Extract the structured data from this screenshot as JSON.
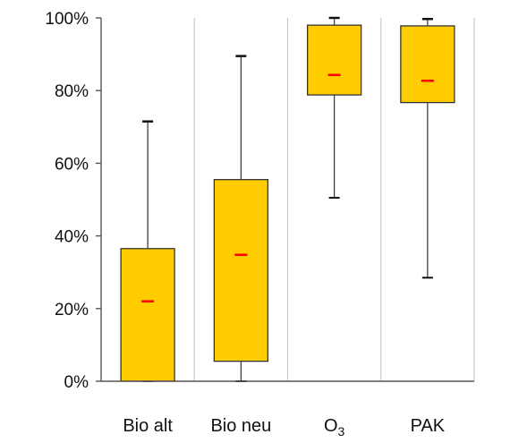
{
  "chart_data": {
    "type": "box",
    "title": "",
    "xlabel": "",
    "ylabel": "",
    "ylim": [
      0,
      100
    ],
    "yticks": [
      0,
      20,
      40,
      60,
      80,
      100
    ],
    "ytick_labels": [
      "0%",
      "20%",
      "40%",
      "60%",
      "80%",
      "100%"
    ],
    "grid": "vertical separators between categories",
    "colors": {
      "box_fill": "#ffcc00",
      "box_edge": "#333333",
      "mean_marker": "#ff0000",
      "whisker": "#333333",
      "separator": "#c8c8c8"
    },
    "categories": [
      {
        "label": "Bio alt",
        "label_sub": "",
        "whisker_low": 0,
        "q1": 0,
        "mean": 22,
        "q3": 36.5,
        "whisker_high": 71.5
      },
      {
        "label": "Bio neu",
        "label_sub": "",
        "whisker_low": 0,
        "q1": 5.5,
        "mean": 34.8,
        "q3": 55.5,
        "whisker_high": 89.5
      },
      {
        "label": "O",
        "label_sub": "3",
        "whisker_low": 50.5,
        "q1": 78.8,
        "mean": 84.3,
        "q3": 98,
        "whisker_high": 100
      },
      {
        "label": "PAK",
        "label_sub": "",
        "whisker_low": 28.5,
        "q1": 76.7,
        "mean": 82.7,
        "q3": 97.8,
        "whisker_high": 99.7
      }
    ]
  }
}
